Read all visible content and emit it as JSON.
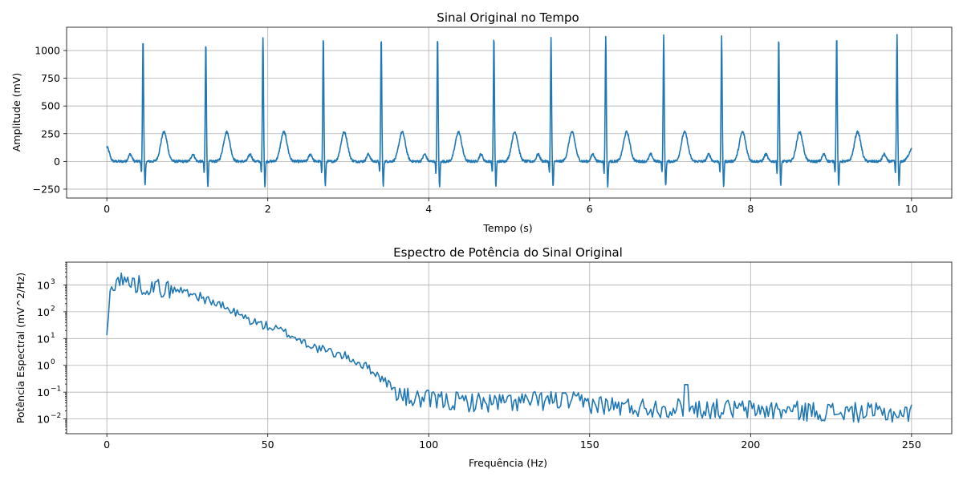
{
  "chart_data": [
    {
      "type": "line",
      "title": "Sinal Original no Tempo",
      "xlabel": "Tempo (s)",
      "ylabel": "Amplitude (mV)",
      "xlim": [
        -0.5,
        10.5
      ],
      "ylim": [
        -330,
        1210
      ],
      "xticks": [
        0,
        2,
        4,
        6,
        8,
        10
      ],
      "xtick_labels": [
        "0",
        "2",
        "4",
        "6",
        "8",
        "10"
      ],
      "yticks": [
        -250,
        0,
        250,
        500,
        750,
        1000
      ],
      "ytick_labels": [
        "−250",
        "0",
        "250",
        "500",
        "750",
        "1000"
      ],
      "grid": true,
      "color": "#1f77b4",
      "signal": {
        "duration_s": 10,
        "baseline_start": 130,
        "beats": [
          {
            "r": 0.45,
            "amp": 1105
          },
          {
            "r": 1.23,
            "amp": 1070
          },
          {
            "r": 1.94,
            "amp": 1115
          },
          {
            "r": 2.69,
            "amp": 1125
          },
          {
            "r": 3.41,
            "amp": 1115
          },
          {
            "r": 4.11,
            "amp": 1125
          },
          {
            "r": 4.81,
            "amp": 1125
          },
          {
            "r": 5.52,
            "amp": 1100
          },
          {
            "r": 6.2,
            "amp": 1125
          },
          {
            "r": 6.92,
            "amp": 1125
          },
          {
            "r": 7.64,
            "amp": 1120
          },
          {
            "r": 8.35,
            "amp": 1110
          },
          {
            "r": 9.07,
            "amp": 1125
          },
          {
            "r": 9.82,
            "amp": 1135
          }
        ],
        "p_wave_amp": 65,
        "t_wave_amp": 265,
        "q_depth": -110,
        "s_depth": -225,
        "end_value": 90
      }
    },
    {
      "type": "line",
      "title": "Espectro de Potência do Sinal Original",
      "xlabel": "Frequência (Hz)",
      "ylabel": "Potência Espectral (mV^2/Hz)",
      "xlim": [
        -12.5,
        262.5
      ],
      "ylim_log10": [
        -2.55,
        3.85
      ],
      "yscale": "log",
      "xticks": [
        0,
        50,
        100,
        150,
        200,
        250
      ],
      "xtick_labels": [
        "0",
        "50",
        "100",
        "150",
        "200",
        "250"
      ],
      "yticks_log10": [
        -2,
        -1,
        0,
        1,
        2,
        3
      ],
      "ytick_labels": [
        [
          "10",
          "−2"
        ],
        [
          "10",
          "−1"
        ],
        [
          "10",
          "0"
        ],
        [
          "10",
          "1"
        ],
        [
          "10",
          "2"
        ],
        [
          "10",
          "3"
        ]
      ],
      "grid": true,
      "color": "#1f77b4",
      "spectrum_envelope": {
        "freq": [
          0,
          1,
          2,
          4,
          8,
          15,
          25,
          35,
          45,
          55,
          65,
          75,
          82,
          88,
          92,
          100,
          120,
          140,
          160,
          180,
          200,
          230,
          250
        ],
        "log10_power": [
          1.15,
          2.6,
          3.1,
          3.2,
          3.05,
          2.9,
          2.75,
          2.25,
          1.65,
          1.25,
          0.65,
          0.3,
          -0.15,
          -0.75,
          -1.2,
          -1.3,
          -1.4,
          -1.3,
          -1.55,
          -1.6,
          -1.65,
          -1.75,
          -1.8
        ]
      },
      "spike": {
        "freq": 180,
        "log10_power": -0.72
      }
    }
  ]
}
